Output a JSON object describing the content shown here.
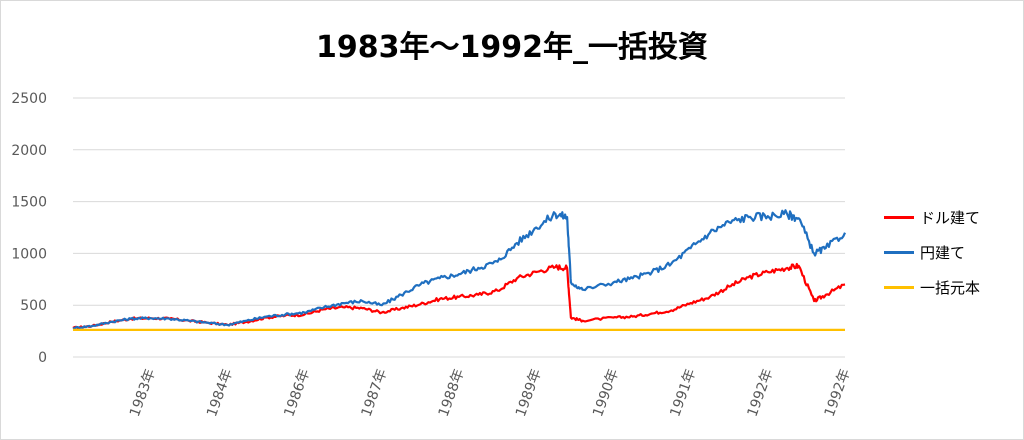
{
  "chart_data": {
    "type": "line",
    "title": "1983年～1992年_一括投資",
    "xlabel": "",
    "ylabel": "",
    "ylim": [
      0,
      2500
    ],
    "yticks": [
      0,
      500,
      1000,
      1500,
      2000,
      2500
    ],
    "grid": true,
    "legend_position": "right",
    "x_tick_labels": [
      "1983年",
      "1984年",
      "1986年",
      "1987年",
      "1988年",
      "1989年",
      "1990年",
      "1991年",
      "1992年",
      "1992年"
    ],
    "x_range": [
      0,
      10
    ],
    "series": [
      {
        "name": "ドル建て",
        "color": "#ff0000",
        "points": [
          [
            0,
            280
          ],
          [
            0.25,
            300
          ],
          [
            0.5,
            340
          ],
          [
            0.75,
            370
          ],
          [
            1,
            375
          ],
          [
            1.25,
            370
          ],
          [
            1.5,
            350
          ],
          [
            1.75,
            330
          ],
          [
            2,
            310
          ],
          [
            2.25,
            340
          ],
          [
            2.5,
            380
          ],
          [
            2.75,
            400
          ],
          [
            3,
            410
          ],
          [
            3.25,
            460
          ],
          [
            3.5,
            480
          ],
          [
            3.75,
            470
          ],
          [
            4,
            430
          ],
          [
            4.25,
            470
          ],
          [
            4.5,
            510
          ],
          [
            4.75,
            560
          ],
          [
            5,
            580
          ],
          [
            5.25,
            600
          ],
          [
            5.5,
            640
          ],
          [
            5.75,
            760
          ],
          [
            6,
            820
          ],
          [
            6.25,
            870
          ],
          [
            6.4,
            860
          ],
          [
            6.45,
            380
          ],
          [
            6.6,
            350
          ],
          [
            7,
            380
          ],
          [
            7.25,
            390
          ],
          [
            7.5,
            420
          ],
          [
            7.75,
            450
          ],
          [
            8,
            520
          ],
          [
            8.25,
            580
          ],
          [
            8.5,
            680
          ],
          [
            8.75,
            770
          ],
          [
            9,
            820
          ],
          [
            9.25,
            860
          ],
          [
            9.4,
            880
          ],
          [
            9.6,
            540
          ],
          [
            9.75,
            600
          ],
          [
            10,
            700
          ]
        ]
      },
      {
        "name": "円建て",
        "color": "#1f6fc0",
        "points": [
          [
            0,
            280
          ],
          [
            0.25,
            300
          ],
          [
            0.5,
            340
          ],
          [
            0.75,
            370
          ],
          [
            1,
            375
          ],
          [
            1.25,
            370
          ],
          [
            1.5,
            350
          ],
          [
            1.75,
            330
          ],
          [
            2,
            310
          ],
          [
            2.25,
            350
          ],
          [
            2.5,
            390
          ],
          [
            2.75,
            410
          ],
          [
            3,
            430
          ],
          [
            3.25,
            480
          ],
          [
            3.5,
            520
          ],
          [
            3.75,
            540
          ],
          [
            4,
            500
          ],
          [
            4.25,
            600
          ],
          [
            4.5,
            700
          ],
          [
            4.75,
            760
          ],
          [
            5,
            800
          ],
          [
            5.25,
            860
          ],
          [
            5.5,
            920
          ],
          [
            5.75,
            1100
          ],
          [
            6,
            1250
          ],
          [
            6.25,
            1380
          ],
          [
            6.4,
            1350
          ],
          [
            6.45,
            720
          ],
          [
            6.6,
            650
          ],
          [
            7,
            720
          ],
          [
            7.25,
            760
          ],
          [
            7.5,
            820
          ],
          [
            7.75,
            900
          ],
          [
            8,
            1050
          ],
          [
            8.25,
            1200
          ],
          [
            8.5,
            1300
          ],
          [
            8.75,
            1350
          ],
          [
            9,
            1360
          ],
          [
            9.25,
            1380
          ],
          [
            9.4,
            1340
          ],
          [
            9.6,
            1000
          ],
          [
            9.75,
            1050
          ],
          [
            10,
            1200
          ]
        ]
      },
      {
        "name": "一括元本",
        "color": "#ffc000",
        "points": [
          [
            0,
            262
          ],
          [
            10,
            262
          ]
        ]
      }
    ]
  }
}
